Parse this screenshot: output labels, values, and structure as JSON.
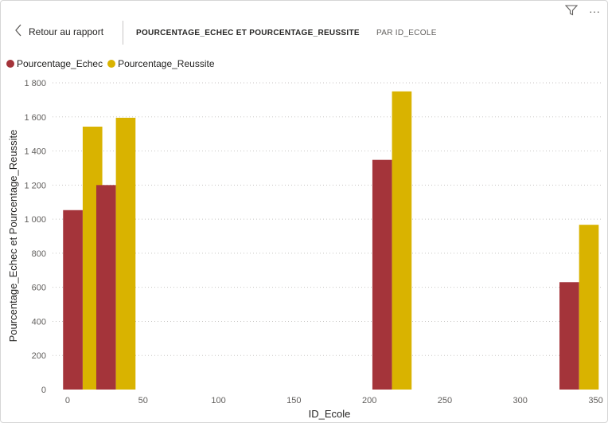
{
  "header": {
    "back_label": "Retour au rapport",
    "title": "POURCENTAGE_ECHEC ET POURCENTAGE_REUSSITE",
    "subtitle": "PAR ID_ECOLE"
  },
  "icons": {
    "filter": "filter-icon",
    "more": "more-options-icon",
    "back": "chevron-left-icon"
  },
  "colors": {
    "echec": "#A4343A",
    "reussite": "#D9B300",
    "grid": "#c8c6c4"
  },
  "chart_data": {
    "type": "bar",
    "xlabel": "ID_Ecole",
    "ylabel": "Pourcentage_Echec et Pourcentage_Reussite",
    "ylim": [
      0,
      1800
    ],
    "xlim": [
      -10,
      355
    ],
    "bar_group_width": 26,
    "yticks": [
      {
        "value": 0,
        "label": "0"
      },
      {
        "value": 200,
        "label": "200"
      },
      {
        "value": 400,
        "label": "400"
      },
      {
        "value": 600,
        "label": "600"
      },
      {
        "value": 800,
        "label": "800"
      },
      {
        "value": 1000,
        "label": "1 000"
      },
      {
        "value": 1200,
        "label": "1 200"
      },
      {
        "value": 1400,
        "label": "1 400"
      },
      {
        "value": 1600,
        "label": "1 600"
      },
      {
        "value": 1800,
        "label": "1 800"
      }
    ],
    "xticks": [
      {
        "value": 0,
        "label": "0"
      },
      {
        "value": 50,
        "label": "50"
      },
      {
        "value": 100,
        "label": "100"
      },
      {
        "value": 150,
        "label": "150"
      },
      {
        "value": 200,
        "label": "200"
      },
      {
        "value": 250,
        "label": "250"
      },
      {
        "value": 300,
        "label": "300"
      },
      {
        "value": 350,
        "label": "350"
      }
    ],
    "x": [
      10,
      32,
      215,
      339
    ],
    "series": [
      {
        "name": "Pourcentage_Echec",
        "color": "#A4343A",
        "values": [
          1053,
          1200,
          1348,
          630
        ]
      },
      {
        "name": "Pourcentage_Reussite",
        "color": "#D9B300",
        "values": [
          1543,
          1595,
          1750,
          967
        ]
      }
    ],
    "legend": "top-left",
    "grid": true
  }
}
